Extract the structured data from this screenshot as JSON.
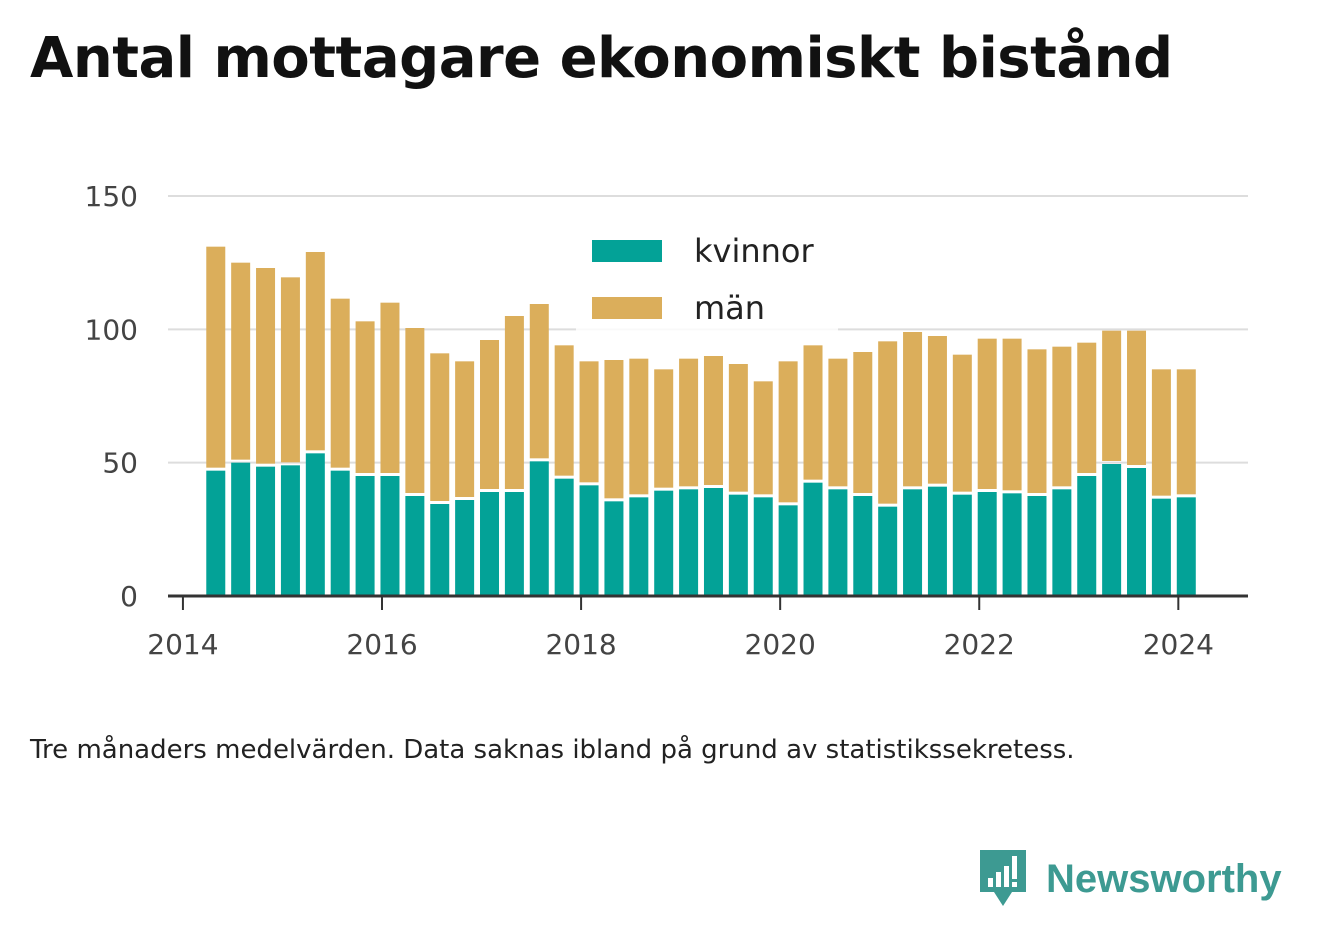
{
  "title": "Antal mottagare ekonomiskt bistånd",
  "note": "Tre månaders medelvärden. Data saknas ibland på grund av statistikssekretess.",
  "brand": {
    "name": "Newsworthy",
    "icon": "newsworthy-logo-icon",
    "color": "#3d9a92"
  },
  "chart_data": {
    "type": "bar",
    "stacked": true,
    "xlim": [
      2013.85,
      2024.7
    ],
    "ylim": [
      0,
      150
    ],
    "yticks": [
      0,
      50,
      100,
      150
    ],
    "xticks": [
      2014,
      2016,
      2018,
      2020,
      2022,
      2024
    ],
    "xtick_labels": [
      "2014",
      "2016",
      "2018",
      "2020",
      "2022",
      "2024"
    ],
    "grid": true,
    "legend_position": "top-center",
    "x": [
      2014.33,
      2014.58,
      2014.83,
      2015.08,
      2015.33,
      2015.58,
      2015.83,
      2016.08,
      2016.33,
      2016.58,
      2016.83,
      2017.08,
      2017.33,
      2017.58,
      2017.83,
      2018.08,
      2018.33,
      2018.58,
      2018.83,
      2019.08,
      2019.33,
      2019.58,
      2019.83,
      2020.08,
      2020.33,
      2020.58,
      2020.83,
      2021.08,
      2021.33,
      2021.58,
      2021.83,
      2022.08,
      2022.33,
      2022.58,
      2022.83,
      2023.08,
      2023.33,
      2023.58,
      2023.83,
      2024.08
    ],
    "series": [
      {
        "name": "kvinnor",
        "color": "#03a297",
        "values": [
          47,
          50,
          48.5,
          49,
          53.5,
          47,
          45,
          45,
          37.5,
          34.5,
          36,
          39,
          39,
          50.5,
          44,
          41.5,
          35.5,
          37,
          39.5,
          40,
          40.5,
          38,
          37,
          34,
          42.5,
          40,
          37.5,
          33.5,
          40,
          41,
          38,
          39,
          38.5,
          37.5,
          40,
          45,
          49.5,
          48,
          36.5,
          37
        ]
      },
      {
        "name": "män",
        "color": "#dbae5b",
        "values": [
          84,
          75,
          74.5,
          70.5,
          75.5,
          64.5,
          58,
          65,
          63,
          56.5,
          52,
          57,
          66,
          59,
          50,
          46.5,
          53,
          52,
          45.5,
          49,
          49.5,
          49,
          43.5,
          54,
          51.5,
          49,
          54,
          62,
          59,
          56.5,
          52.5,
          57.5,
          58,
          55,
          53.5,
          50,
          50,
          51.5,
          48.5,
          48
        ]
      }
    ]
  }
}
